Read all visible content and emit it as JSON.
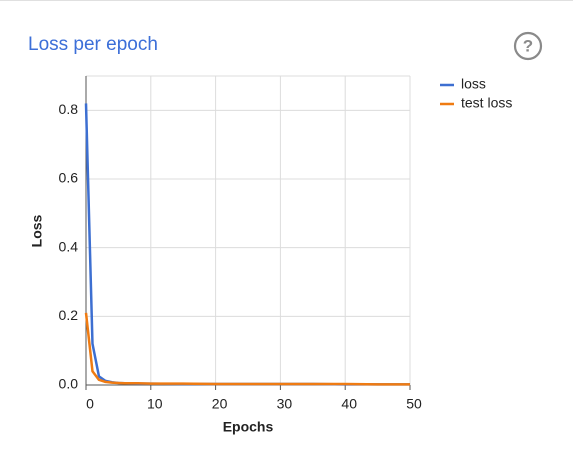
{
  "chart_data": {
    "type": "line",
    "title": "Loss per epoch",
    "x_label": "Epochs",
    "y_label": "Loss",
    "x": [
      0,
      1,
      2,
      3,
      4,
      5,
      6,
      8,
      10,
      15,
      20,
      25,
      30,
      35,
      40,
      45,
      50
    ],
    "series": [
      {
        "name": "loss",
        "color": "#3d6fd1",
        "values": [
          0.82,
          0.12,
          0.025,
          0.012,
          0.008,
          0.006,
          0.005,
          0.004,
          0.004,
          0.003,
          0.003,
          0.003,
          0.003,
          0.003,
          0.002,
          0.002,
          0.002
        ]
      },
      {
        "name": "test loss",
        "color": "#ef7b12",
        "values": [
          0.21,
          0.04,
          0.015,
          0.009,
          0.007,
          0.006,
          0.005,
          0.005,
          0.004,
          0.004,
          0.003,
          0.003,
          0.003,
          0.003,
          0.003,
          0.002,
          0.002
        ]
      }
    ],
    "xlim": [
      0,
      50
    ],
    "xticks": [
      0,
      10,
      20,
      30,
      40,
      50
    ],
    "ylim": [
      0,
      0.9
    ],
    "yticks": [
      {
        "value": 0,
        "label": "0.0"
      },
      0.2,
      0.4,
      0.6,
      0.8
    ],
    "grid": true,
    "legend": "right"
  }
}
